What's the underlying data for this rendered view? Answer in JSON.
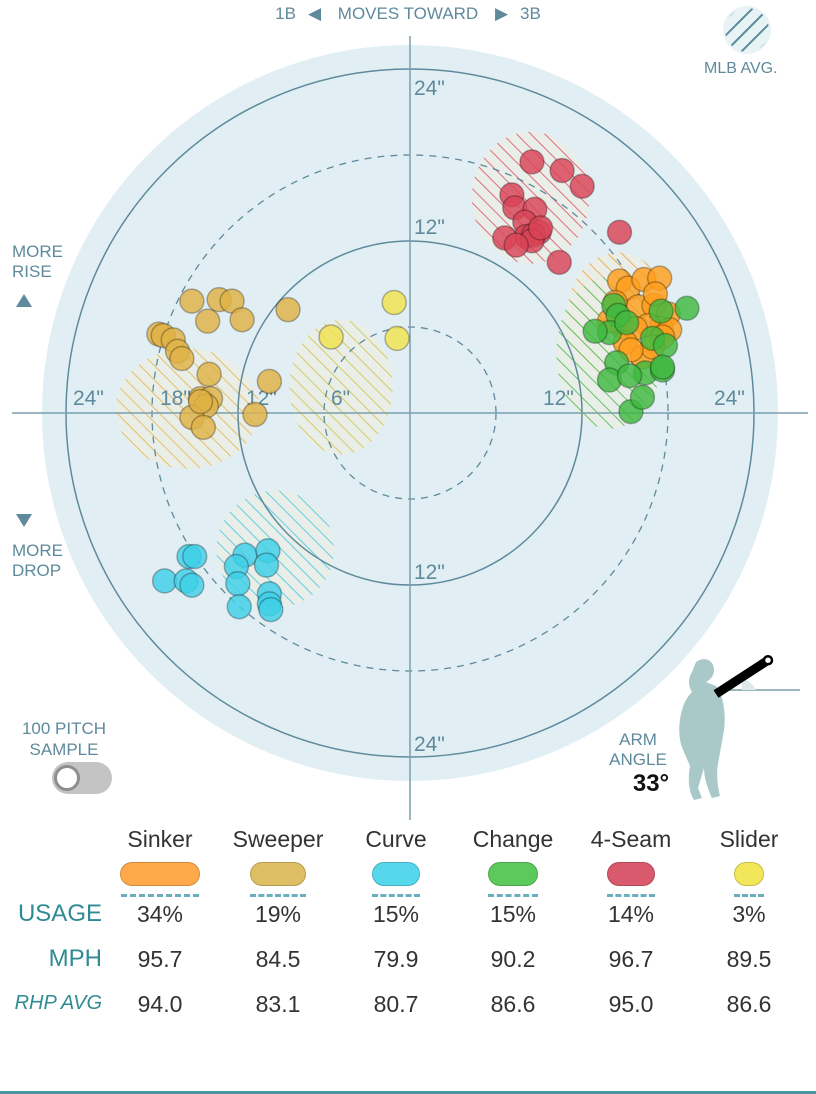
{
  "header": {
    "left_base": "1B",
    "moves_label": "MOVES TOWARD",
    "right_base": "3B"
  },
  "legend": {
    "mlb_avg_label": "MLB AVG."
  },
  "axis_labels": {
    "more_rise": [
      "MORE",
      "RISE"
    ],
    "more_drop": [
      "MORE",
      "DROP"
    ]
  },
  "sample_toggle": {
    "label_line1": "100 PITCH",
    "label_line2": "SAMPLE",
    "state": "off"
  },
  "arm_angle": {
    "label_line1": "ARM",
    "label_line2": "ANGLE",
    "value": "33°",
    "degrees": 33
  },
  "chart_data": {
    "type": "scatter",
    "title": "",
    "xlabel": "1B ◀ MOVES TOWARD ▶ 3B",
    "ylabel": "MORE RISE ▲ / ▼ MORE DROP",
    "units": "inches",
    "xlim": [
      -25.6,
      25.6
    ],
    "ylim": [
      -25.6,
      25.6
    ],
    "rings": [
      {
        "radius": 6,
        "style": "dashed",
        "label": "6\""
      },
      {
        "radius": 12,
        "style": "solid",
        "label": "12\""
      },
      {
        "radius": 18,
        "style": "dashed",
        "label": "18\""
      },
      {
        "radius": 24,
        "style": "solid",
        "label": "24\""
      }
    ],
    "ring_labels": {
      "top": [
        "24\"",
        "12\""
      ],
      "bottom": [
        "12\"",
        "24\""
      ],
      "left": [
        "24\"",
        "18\"",
        "12\"",
        "6\""
      ],
      "right": [
        "12\"",
        "24\""
      ]
    },
    "series": [
      {
        "name": "Sinker",
        "color": "#ff9f1c",
        "avg_color": "#f5a33a",
        "mlb_avg": {
          "x": 14.5,
          "y": 6.6,
          "rx": 3.6,
          "ry": 4.6
        },
        "points": [
          [
            14.6,
            9.2
          ],
          [
            15.2,
            8.7
          ],
          [
            16.3,
            9.3
          ],
          [
            17.4,
            9.4
          ],
          [
            15.9,
            7.4
          ],
          [
            17.0,
            7.5
          ],
          [
            18.0,
            6.9
          ],
          [
            17.5,
            5.9
          ],
          [
            16.6,
            6.1
          ],
          [
            14.8,
            6.0
          ],
          [
            15.7,
            5.9
          ],
          [
            18.1,
            5.8
          ],
          [
            15.0,
            4.9
          ],
          [
            16.2,
            3.9
          ],
          [
            17.6,
            5.3
          ],
          [
            16.9,
            4.6
          ],
          [
            14.3,
            7.7
          ],
          [
            13.9,
            6.4
          ],
          [
            15.4,
            4.4
          ],
          [
            17.1,
            8.3
          ]
        ]
      },
      {
        "name": "Sweeper",
        "color": "#dfb245",
        "avg_color": "#e7b84f",
        "mlb_avg": {
          "x": -15.5,
          "y": 0.3,
          "rx": 5.0,
          "ry": 4.2
        },
        "points": [
          [
            -15.2,
            7.8
          ],
          [
            -13.3,
            7.9
          ],
          [
            -12.4,
            7.8
          ],
          [
            -14.1,
            6.4
          ],
          [
            -11.7,
            6.5
          ],
          [
            -17.5,
            5.5
          ],
          [
            -17.2,
            5.4
          ],
          [
            -16.5,
            5.1
          ],
          [
            -16.2,
            4.3
          ],
          [
            -15.9,
            3.8
          ],
          [
            -8.5,
            7.2
          ],
          [
            -14.0,
            2.7
          ],
          [
            -9.8,
            2.2
          ],
          [
            -14.6,
            1.0
          ],
          [
            -13.9,
            1.0
          ],
          [
            -14.2,
            0.5
          ],
          [
            -15.2,
            -0.3
          ],
          [
            -14.4,
            -1.0
          ],
          [
            -10.8,
            -0.1
          ],
          [
            -14.6,
            0.8
          ]
        ]
      },
      {
        "name": "Curve",
        "color": "#3ed0e8",
        "avg_color": "#4cc9e2",
        "mlb_avg": {
          "x": -9.4,
          "y": -9.5,
          "rx": 4.1,
          "ry": 4.1
        },
        "points": [
          [
            -15.4,
            -10.0
          ],
          [
            -15.0,
            -10.0
          ],
          [
            -17.1,
            -11.7
          ],
          [
            -15.6,
            -11.7
          ],
          [
            -15.2,
            -12.0
          ],
          [
            -11.5,
            -9.9
          ],
          [
            -9.9,
            -9.6
          ],
          [
            -12.1,
            -10.7
          ],
          [
            -10.0,
            -10.6
          ],
          [
            -12.0,
            -11.9
          ],
          [
            -9.8,
            -12.6
          ],
          [
            -11.9,
            -13.5
          ],
          [
            -9.8,
            -13.3
          ],
          [
            -9.7,
            -13.7
          ]
        ]
      },
      {
        "name": "Change",
        "color": "#3fba3f",
        "avg_color": "#4cbd4c",
        "mlb_avg": {
          "x": 13.9,
          "y": 4.2,
          "rx": 3.7,
          "ry": 5.3
        },
        "points": [
          [
            14.2,
            7.5
          ],
          [
            17.5,
            7.1
          ],
          [
            19.3,
            7.3
          ],
          [
            14.5,
            6.8
          ],
          [
            13.9,
            5.6
          ],
          [
            15.1,
            6.3
          ],
          [
            16.9,
            5.2
          ],
          [
            17.8,
            4.7
          ],
          [
            12.9,
            5.7
          ],
          [
            14.4,
            3.5
          ],
          [
            16.4,
            2.8
          ],
          [
            17.6,
            3.0
          ],
          [
            13.9,
            2.3
          ],
          [
            15.3,
            2.6
          ],
          [
            17.6,
            3.2
          ],
          [
            15.4,
            0.1
          ],
          [
            16.2,
            1.1
          ]
        ]
      },
      {
        "name": "4-Seam",
        "color": "#d94357",
        "avg_color": "#e0566a",
        "mlb_avg": {
          "x": 8.4,
          "y": 15.0,
          "rx": 4.1,
          "ry": 4.6
        },
        "points": [
          [
            8.5,
            17.5
          ],
          [
            10.6,
            16.9
          ],
          [
            12.0,
            15.8
          ],
          [
            7.1,
            15.2
          ],
          [
            7.3,
            14.3
          ],
          [
            8.7,
            14.2
          ],
          [
            8.0,
            13.3
          ],
          [
            8.1,
            12.3
          ],
          [
            9.0,
            12.6
          ],
          [
            8.6,
            12.4
          ],
          [
            8.5,
            12.0
          ],
          [
            6.6,
            12.2
          ],
          [
            7.4,
            11.7
          ],
          [
            9.1,
            12.9
          ],
          [
            14.6,
            12.6
          ],
          [
            10.4,
            10.5
          ]
        ]
      },
      {
        "name": "Slider",
        "color": "#f0e34f",
        "avg_color": "#d2c54c",
        "mlb_avg": {
          "x": -4.8,
          "y": 1.8,
          "rx": 3.6,
          "ry": 4.7
        },
        "points": [
          [
            -1.1,
            7.7
          ],
          [
            -5.5,
            5.3
          ],
          [
            -0.9,
            5.2
          ]
        ]
      }
    ]
  },
  "table": {
    "row_labels": {
      "usage": "USAGE",
      "mph": "MPH",
      "rhp_avg": "RHP AVG"
    },
    "pitches": [
      {
        "name": "Sinker",
        "color": "#ffa94b",
        "usage": "34%",
        "usage_pct": 34,
        "mph": "95.7",
        "rhp_avg": "94.0"
      },
      {
        "name": "Sweeper",
        "color": "#dfbf64",
        "usage": "19%",
        "usage_pct": 19,
        "mph": "84.5",
        "rhp_avg": "83.1"
      },
      {
        "name": "Curve",
        "color": "#56d7ec",
        "usage": "15%",
        "usage_pct": 15,
        "mph": "79.9",
        "rhp_avg": "80.7"
      },
      {
        "name": "Change",
        "color": "#5cc95c",
        "usage": "15%",
        "usage_pct": 15,
        "mph": "90.2",
        "rhp_avg": "86.6"
      },
      {
        "name": "4-Seam",
        "color": "#d95a6c",
        "usage": "14%",
        "usage_pct": 14,
        "mph": "96.7",
        "rhp_avg": "95.0"
      },
      {
        "name": "Slider",
        "color": "#f2e75a",
        "usage": "3%",
        "usage_pct": 3,
        "mph": "89.5",
        "rhp_avg": "86.6"
      }
    ]
  }
}
